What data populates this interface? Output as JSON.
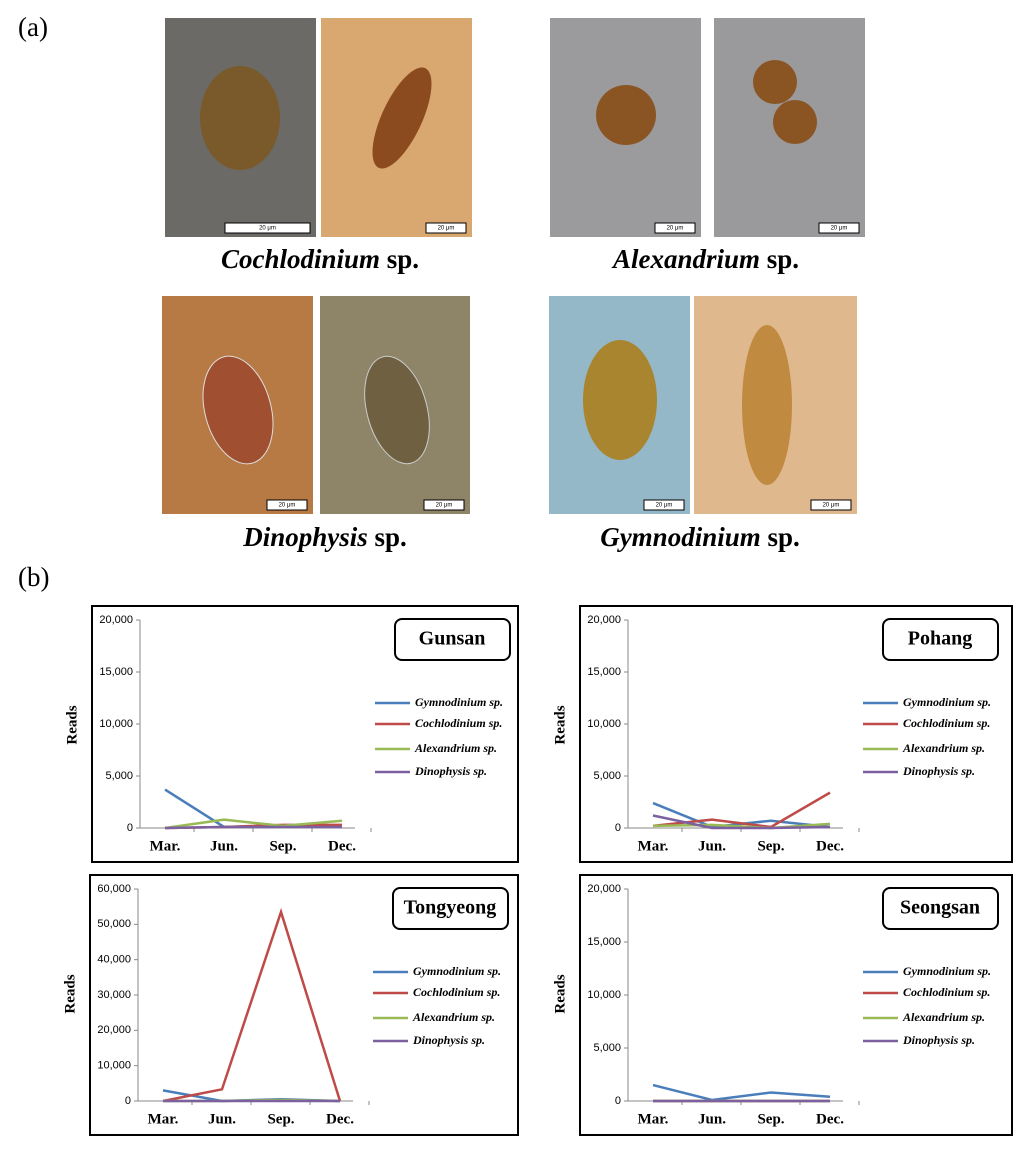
{
  "panel_labels": [
    "(a)",
    "(b)"
  ],
  "photos": [
    {
      "genus": "Cochlodinium",
      "rank": "sp.",
      "scale_labels": [
        "20 μm",
        "20 μm"
      ]
    },
    {
      "genus": "Alexandrium",
      "rank": "sp.",
      "scale_labels": [
        "20 μm",
        "20 μm"
      ]
    },
    {
      "genus": "Dinophysis",
      "rank": "sp.",
      "scale_labels": [
        "20 μm",
        "20 μm"
      ]
    },
    {
      "genus": "Gymnodinium",
      "rank": "sp.",
      "scale_labels": [
        "20 μm",
        "20 μm"
      ]
    }
  ],
  "chart_data": [
    {
      "type": "line",
      "title": "Gunsan",
      "y_label": "Reads",
      "categories": [
        "Mar.",
        "Jun.",
        "Sep.",
        "Dec."
      ],
      "ylim": [
        0,
        20000
      ],
      "yticks": [
        0,
        {
          "value": 5000,
          "label": "5,000"
        },
        {
          "value": 10000,
          "label": "10,000"
        },
        {
          "value": 15000,
          "label": "15,000"
        },
        {
          "value": 20000,
          "label": "20,000"
        }
      ],
      "series": [
        {
          "name": "Gymnodinium sp.",
          "color": "#4a7ebb",
          "values": [
            3700,
            100,
            200,
            100
          ]
        },
        {
          "name": "Cochlodinium sp.",
          "color": "#be4b48",
          "values": [
            0,
            100,
            300,
            300
          ]
        },
        {
          "name": "Alexandrium sp.",
          "color": "#98b954",
          "values": [
            0,
            800,
            200,
            700
          ]
        },
        {
          "name": "Dinophysis sp.",
          "color": "#7d60a0",
          "values": [
            0,
            100,
            100,
            100
          ]
        }
      ]
    },
    {
      "type": "line",
      "title": "Pohang",
      "y_label": "Reads",
      "categories": [
        "Mar.",
        "Jun.",
        "Sep.",
        "Dec."
      ],
      "ylim": [
        0,
        20000
      ],
      "yticks": [
        0,
        {
          "value": 5000,
          "label": "5,000"
        },
        {
          "value": 10000,
          "label": "10,000"
        },
        {
          "value": 15000,
          "label": "15,000"
        },
        {
          "value": 20000,
          "label": "20,000"
        }
      ],
      "series": [
        {
          "name": "Gymnodinium sp.",
          "color": "#4a7ebb",
          "values": [
            2400,
            100,
            700,
            100
          ]
        },
        {
          "name": "Cochlodinium sp.",
          "color": "#be4b48",
          "values": [
            200,
            800,
            100,
            3400
          ]
        },
        {
          "name": "Alexandrium sp.",
          "color": "#98b954",
          "values": [
            200,
            300,
            0,
            400
          ]
        },
        {
          "name": "Dinophysis sp.",
          "color": "#7d60a0",
          "values": [
            1200,
            0,
            0,
            100
          ]
        }
      ]
    },
    {
      "type": "line",
      "title": "Tongyeong",
      "y_label": "Reads",
      "categories": [
        "Mar.",
        "Jun.",
        "Sep.",
        "Dec."
      ],
      "ylim": [
        0,
        60000
      ],
      "yticks": [
        0,
        {
          "value": 10000,
          "label": "10,000"
        },
        {
          "value": 20000,
          "label": "20,000"
        },
        {
          "value": 30000,
          "label": "30,000"
        },
        {
          "value": 40000,
          "label": "40,000"
        },
        {
          "value": 50000,
          "label": "50,000"
        },
        {
          "value": 60000,
          "label": "60,000"
        }
      ],
      "series": [
        {
          "name": "Gymnodinium sp.",
          "color": "#4a7ebb",
          "values": [
            3000,
            0,
            500,
            0
          ]
        },
        {
          "name": "Cochlodinium sp.",
          "color": "#be4b48",
          "values": [
            0,
            3300,
            53500,
            0
          ]
        },
        {
          "name": "Alexandrium sp.",
          "color": "#98b954",
          "values": [
            0,
            0,
            300,
            0
          ]
        },
        {
          "name": "Dinophysis sp.",
          "color": "#7d60a0",
          "values": [
            0,
            0,
            0,
            0
          ]
        }
      ]
    },
    {
      "type": "line",
      "title": "Seongsan",
      "y_label": "Reads",
      "categories": [
        "Mar.",
        "Jun.",
        "Sep.",
        "Dec."
      ],
      "ylim": [
        0,
        20000
      ],
      "yticks": [
        0,
        {
          "value": 5000,
          "label": "5,000"
        },
        {
          "value": 10000,
          "label": "10,000"
        },
        {
          "value": 15000,
          "label": "15,000"
        },
        {
          "value": 20000,
          "label": "20,000"
        }
      ],
      "series": [
        {
          "name": "Gymnodinium sp.",
          "color": "#4a7ebb",
          "values": [
            1500,
            100,
            800,
            400
          ]
        },
        {
          "name": "Cochlodinium sp.",
          "color": "#be4b48",
          "values": [
            0,
            0,
            0,
            0
          ]
        },
        {
          "name": "Alexandrium sp.",
          "color": "#98b954",
          "values": [
            0,
            0,
            0,
            0
          ]
        },
        {
          "name": "Dinophysis sp.",
          "color": "#7d60a0",
          "values": [
            0,
            0,
            0,
            0
          ]
        }
      ]
    }
  ]
}
